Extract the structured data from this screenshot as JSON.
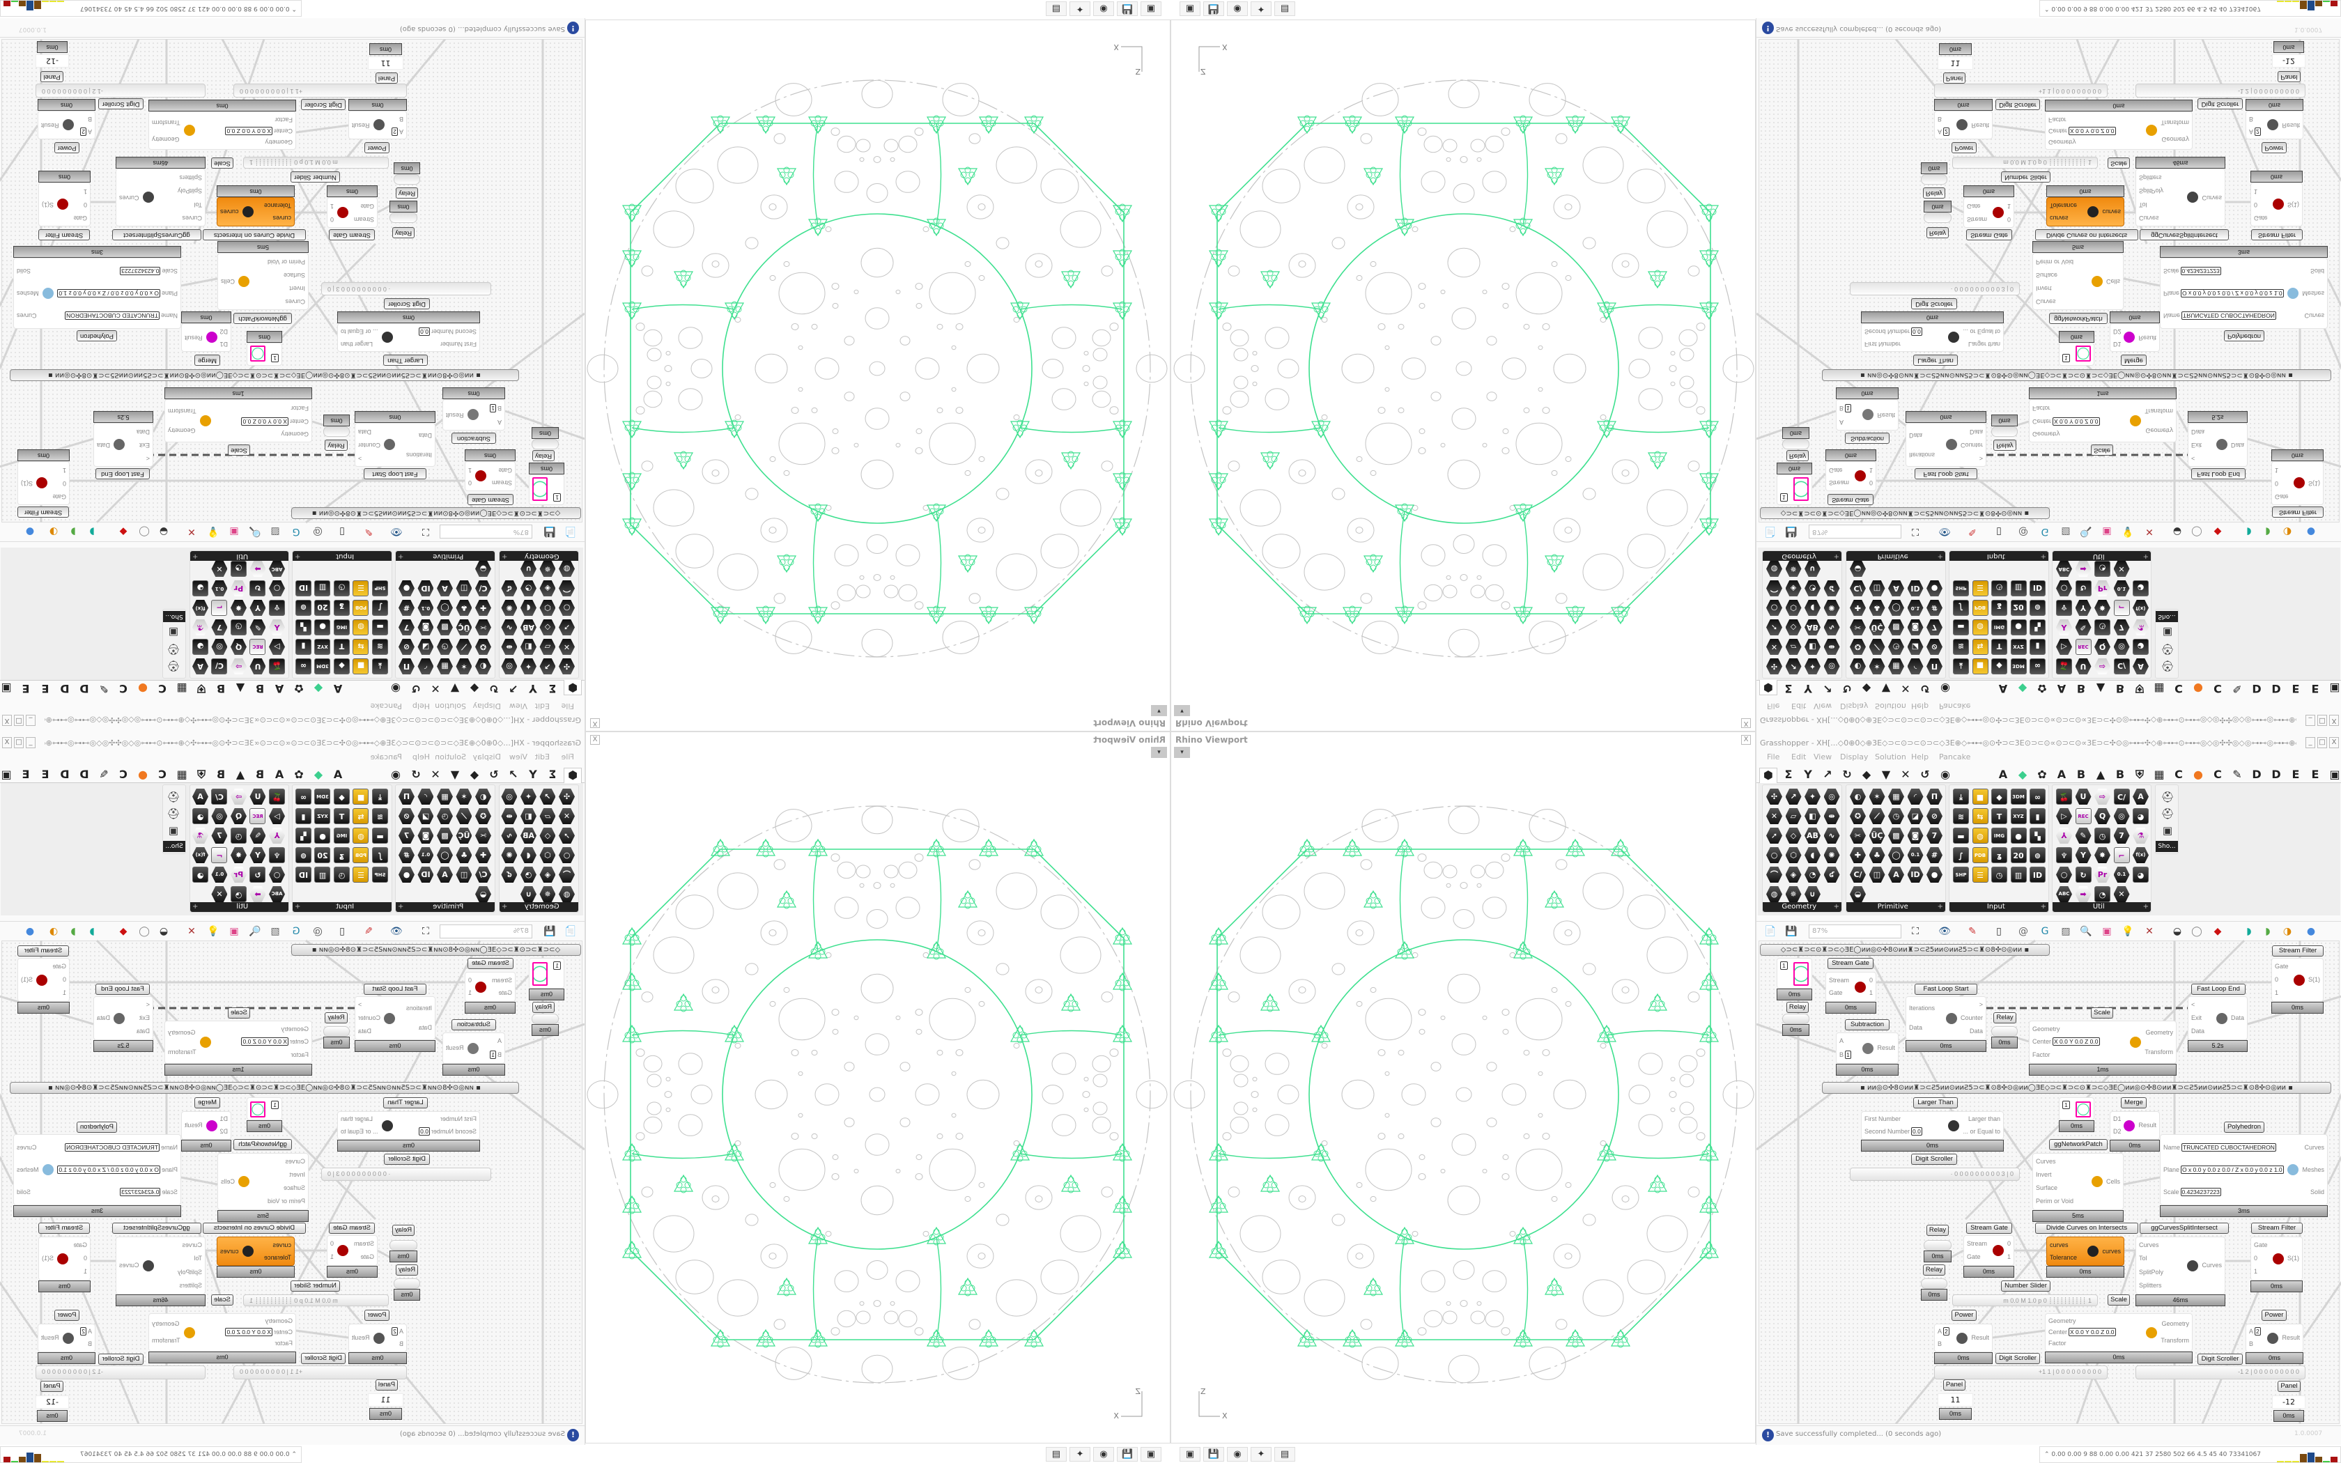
{
  "colors": {
    "accent_green": "#3ee08f",
    "pattern_gray": "#c4c4c4",
    "orange_node": "#f59a23",
    "canvas": "#f7f7f7"
  },
  "viewport": {
    "title": "Rhino Viewport",
    "close": "X",
    "dropdown": "▾",
    "axis_z": "Z",
    "axis_x": "X"
  },
  "taskbar": {
    "icons": [
      "grasshopper-app-icon",
      "floppy-64-icon",
      "firefox-icon",
      "wolf-app-icon",
      "calculator-icon"
    ]
  },
  "gh": {
    "title": "Grasshopper - XH[...◇0⊕0◇⊕3E◇⊃⊂⊙⊃⊂⊙⊃⊂◇3E⊕◇⊶⊷◎⊙✣⊃⊂3E⊙⊃⊂⊙∝⊙⊃⊂⊙∝3E⊃⊂✣⊙◎⊶⊷✣◇⊕⊶⊷⊙⊶⊷◎◇◎✣✣◎◇◎⊶⊷◎⊶⊷⊕◇⊶⊷◎0✣⊃⊂3E∝⊙⊃⊂⊙∝⊙⊃⊂...",
    "window_buttons": [
      "_",
      "□",
      "X"
    ],
    "menu": [
      "File",
      "Edit",
      "View",
      "Display",
      "Solution",
      "Help",
      "Pancake"
    ],
    "tab_icons": [
      "⬢",
      "Σ",
      "Y",
      "↗",
      "↻",
      "◆",
      "▼",
      "✕",
      "↺",
      "◉"
    ],
    "tab_letters": [
      "A",
      "◆",
      "✿",
      "A",
      "B",
      "▲",
      "B",
      "⛨",
      "▦",
      "C",
      "●",
      "C",
      "✎",
      "D",
      "D",
      "E",
      "E",
      "▣"
    ],
    "panels": [
      {
        "name": "Geometry",
        "icons": [
          "✣",
          "↗",
          "✦",
          "◎",
          "✕",
          "▱",
          "◧",
          "⇹",
          "➚",
          "◇",
          "AB",
          "∿",
          "○",
          "⬡",
          "◖",
          "✺",
          "⌒",
          "◈",
          "◔",
          "ʛ",
          "◍",
          "✵",
          "∪"
        ]
      },
      {
        "name": "Primitive",
        "icons": [
          "◐",
          "✶",
          "▦",
          "◜",
          "Π",
          "✪",
          "⟋",
          "◷",
          "◪",
          "⊘",
          "✂",
          "ÜÇ",
          "▩",
          "◙",
          "7",
          "✚",
          "♣",
          "◯",
          "0.1",
          "#",
          "C/",
          "◫",
          "A",
          "ID",
          "●",
          "◒"
        ]
      },
      {
        "name": "Input",
        "icons": [
          "⤓",
          "■",
          "◆",
          "3DM",
          "∞",
          "≋",
          "⇆",
          "T",
          "XYZ",
          "▮",
          "▬",
          "◍",
          "IMG",
          "●",
          "▚",
          "∫",
          "PDB",
          "ʓ",
          "20",
          "⊚",
          "SHP",
          "☰",
          "◷",
          "▥",
          "ID"
        ]
      },
      {
        "name": "Util",
        "icons": [
          "🍒",
          "U",
          "⇨",
          "C/",
          "A",
          "▷",
          "REC",
          "Q",
          "◎",
          "◕",
          "⅄",
          "✎",
          "◷",
          "7",
          "⚗",
          "♆",
          "Y",
          "✸",
          "⌐",
          "f(x)",
          "○",
          "↻",
          "Pr",
          "0.1",
          "◕",
          "ABC",
          "➡",
          "◔",
          "✕"
        ]
      }
    ],
    "sho_label": "Sho...",
    "toolbar_icons": [
      "new-file-icon",
      "save-icon",
      "zoom-extents-icon",
      "preview-eye-icon",
      "sketch-pen-icon",
      "cable-icon",
      "at-icon",
      "gha-icon",
      "image-icon",
      "search-icon",
      "package-icon",
      "lightbulb-icon",
      "cross-wires-icon",
      "mesh-icon",
      "ring-icon",
      "red-box-icon",
      "teal-shape-icon",
      "green-shape-icon",
      "orange-sphere-icon",
      "blue-sphere-icon"
    ],
    "zoom": "87%",
    "status": "Save successfully completed... (0 seconds ago)",
    "version": "1.0.0007",
    "stats": "0.00 0.00 9 88 0.00 0.00 421 37 2580 502 66 4.5 45 40 73341067",
    "stats_bar_colors": [
      "#e8e830",
      "#e8e830",
      "#e8e830",
      "#7a4a10",
      "#1e4a8a",
      "#7a4a10",
      "#44cc44",
      "#aa1111"
    ]
  },
  "canvas": {
    "groups": [
      {
        "text": "◇⊃⊂♜⊃⊂⊙♜⊃⊂◇ƎE◯ᴎᴎ◎⊙✣8⊙ᴎᴎ♜⊃⊂Ƨ5ᴎᴎ⊙ᴎᴎƧ5⊃⊂♜⊙8✣⊙◎ᴎᴎ   ▪"
      },
      {
        "text": "▪   ᴎᴎ◎⊙✣8⊙ᴎᴎ♜⊃⊂Ƨ5ᴎᴎ⊙ᴎᴎƧ5⊃⊂♜⊙8✣⊙◎ᴎᴎ◯ƎE◇⊃⊂♜⊃⊂⊙♜⊃⊂◇ƎE◯ᴎᴎ◎⊙✣8⊙ᴎᴎ♜⊃⊂Ƨ5ᴎᴎ⊙ᴎᴎƧ5⊃⊂♜⊙8✣⊙◎ᴎᴎ   ▪"
      }
    ],
    "nodes": [
      {
        "label": "Stream Gate",
        "inputs": [
          {
            "name": "Stream"
          },
          {
            "name": "Gate"
          }
        ],
        "outputs": [
          {
            "name": "0"
          },
          {
            "name": "1"
          }
        ],
        "icon": "stream-gate-icon",
        "time": "0ms"
      },
      {
        "label": "Fast Loop Start",
        "inputs": [
          {
            "name": "Iterations"
          },
          {
            "name": "Data"
          }
        ],
        "outputs": [
          {
            "name": ">"
          },
          {
            "name": "Counter"
          },
          {
            "name": "Data"
          }
        ],
        "icon": "loop-start-icon",
        "time": "0ms"
      },
      {
        "label": "Subtraction",
        "inputs": [
          {
            "name": "A"
          },
          {
            "name": "B",
            "value": "1"
          }
        ],
        "outputs": [
          {
            "name": "Result"
          }
        ],
        "icon": "minus-icon",
        "time": "0ms"
      },
      {
        "label": "Scale",
        "inputs": [
          {
            "name": "Geometry"
          },
          {
            "name": "Center",
            "value": "X 0.0  Y 0.0  Z 0.0"
          },
          {
            "name": "Factor"
          }
        ],
        "outputs": [
          {
            "name": "Geometry"
          },
          {
            "name": "Transform"
          }
        ],
        "icon": "scale-icon",
        "time": "1ms"
      },
      {
        "label": "Fast Loop End",
        "inputs": [
          {
            "name": "<"
          },
          {
            "name": "Exit"
          },
          {
            "name": "Data"
          }
        ],
        "outputs": [
          {
            "name": "Data"
          }
        ],
        "icon": "loop-end-icon",
        "time": "5.2s"
      },
      {
        "label": "Stream Filter",
        "inputs": [
          {
            "name": "Gate"
          },
          {
            "name": "0"
          },
          {
            "name": "1"
          }
        ],
        "outputs": [
          {
            "name": "S(1)"
          }
        ],
        "icon": "stream-filter-icon",
        "time": "0ms"
      },
      {
        "label": "Larger Than",
        "inputs": [
          {
            "name": "First Number"
          },
          {
            "name": "Second Number",
            "value": "0.0"
          }
        ],
        "outputs": [
          {
            "name": "Larger than"
          },
          {
            "name": "... or Equal to"
          }
        ],
        "icon": "greater-than-icon",
        "time": "0ms"
      },
      {
        "label": "Merge",
        "inputs": [
          {
            "name": "D1"
          },
          {
            "name": "D2"
          }
        ],
        "outputs": [
          {
            "name": "Result"
          }
        ],
        "icon": "merge-icon",
        "time": "0ms"
      },
      {
        "label": "ggNetworkPatch",
        "inputs": [
          {
            "name": "Curves"
          },
          {
            "name": "Invert"
          },
          {
            "name": "Surface"
          },
          {
            "name": "Perim or Void"
          }
        ],
        "outputs": [
          {
            "name": "Cells"
          }
        ],
        "icon": "network-patch-icon",
        "time": "5ms"
      },
      {
        "label": "Polyhedron",
        "inputs": [
          {
            "name": "Name",
            "value": "TRUNCATED CUBOCTAHEDRON"
          },
          {
            "name": "Plane",
            "value": "O x 0.0 y 0.0 z 0.0 / Z x 0.0 y 0.0 z 1.0"
          },
          {
            "name": "Scale",
            "value": "0.4234237223"
          }
        ],
        "outputs": [
          {
            "name": "Curves"
          },
          {
            "name": "Meshes"
          },
          {
            "name": "Solid"
          }
        ],
        "icon": "polyhedron-icon",
        "time": "3ms"
      },
      {
        "label": "Stream Gate",
        "inputs": [
          {
            "name": "Stream"
          },
          {
            "name": "Gate"
          }
        ],
        "outputs": [
          {
            "name": "0"
          },
          {
            "name": "1"
          }
        ],
        "icon": "stream-gate-icon",
        "time": "0ms"
      },
      {
        "label": "Divide Curves on Intersects",
        "inputs": [
          {
            "name": "curves"
          },
          {
            "name": "Tolerance"
          }
        ],
        "outputs": [
          {
            "name": "curves"
          }
        ],
        "icon": "divide-curves-icon",
        "time": "0ms"
      },
      {
        "label": "ggCurvesSplitIntersect",
        "inputs": [
          {
            "name": "Curves"
          },
          {
            "name": "Tol"
          },
          {
            "name": "SplitPoly"
          },
          {
            "name": "Splitters"
          }
        ],
        "outputs": [
          {
            "name": "Curves"
          }
        ],
        "icon": "split-intersect-icon",
        "time": "46ms"
      },
      {
        "label": "Stream Filter",
        "inputs": [
          {
            "name": "Gate"
          },
          {
            "name": "0"
          },
          {
            "name": "1"
          }
        ],
        "outputs": [
          {
            "name": "S(1)"
          }
        ],
        "icon": "stream-filter-icon",
        "time": "0ms"
      },
      {
        "label": "Power",
        "inputs": [
          {
            "name": "A",
            "value": "2"
          },
          {
            "name": "B"
          }
        ],
        "outputs": [
          {
            "name": "Result"
          }
        ],
        "icon": "power-icon",
        "time": "0ms"
      },
      {
        "label": "Power",
        "inputs": [
          {
            "name": "A",
            "value": "2"
          },
          {
            "name": "B"
          }
        ],
        "outputs": [
          {
            "name": "Result"
          }
        ],
        "icon": "power-icon",
        "time": "0ms"
      },
      {
        "label": "Scale",
        "inputs": [
          {
            "name": "Geometry"
          },
          {
            "name": "Center",
            "value": "X 0.0  Y 0.0  Z 0.0"
          },
          {
            "name": "Factor"
          }
        ],
        "outputs": [
          {
            "name": "Geometry"
          },
          {
            "name": "Transform"
          }
        ],
        "icon": "scale-icon",
        "time": "0ms"
      }
    ],
    "relays": [
      {
        "label": "Relay",
        "time": "0ms"
      },
      {
        "label": "Relay",
        "time": "0ms"
      },
      {
        "label": "Relay",
        "time": "0ms"
      },
      {
        "label": "Relay",
        "time": "0ms"
      }
    ],
    "params": [
      {
        "value": "1",
        "time": "0ms"
      },
      {
        "value": "1",
        "time": "0ms"
      }
    ],
    "tags": [
      {
        "label": "Digit Scroller"
      },
      {
        "label": "Number Slider"
      },
      {
        "label": "Digit Scroller"
      },
      {
        "label": "Digit Scroller"
      }
    ],
    "sliders": [
      {
        "text": "· 0 0 0 0 0 0 0 0 0 3 | 0"
      },
      {
        "text": "m 0.0  M 1.0  p 0   ┊┊┊┊┊┊┊┊┊┊  1"
      },
      {
        "text": "+1 1 | 0 0 0 0 0 0 0 0 0"
      },
      {
        "text": "-1 2 | 0 0 0 0 0 0 0 0 0"
      }
    ],
    "panels": [
      {
        "label": "Panel",
        "value": "11",
        "time": "0ms"
      },
      {
        "label": "Panel",
        "value": "-12",
        "time": "0ms"
      }
    ]
  }
}
